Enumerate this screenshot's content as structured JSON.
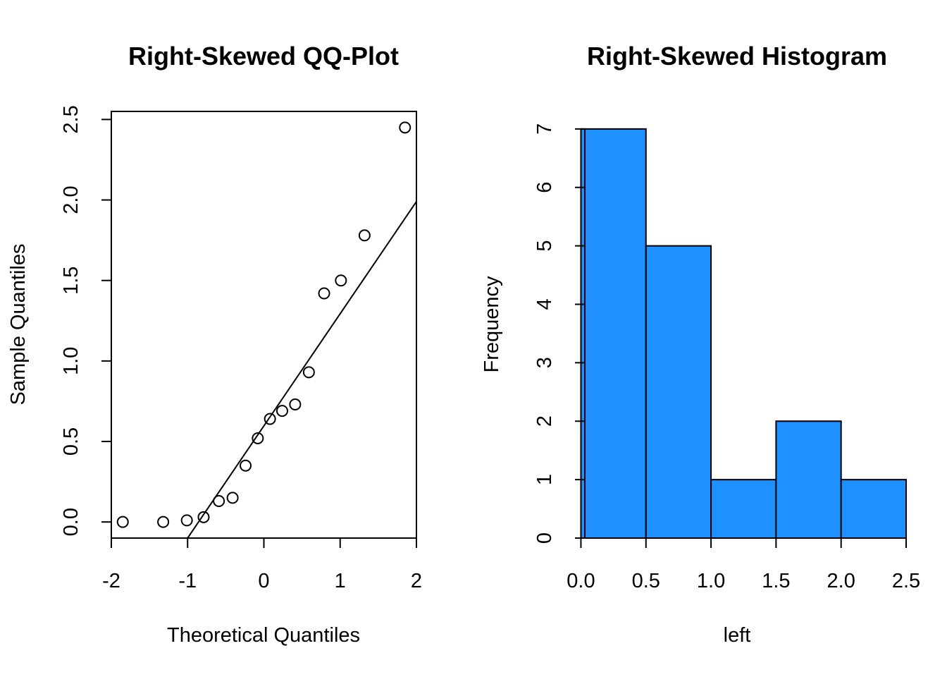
{
  "chart_data": [
    {
      "type": "scatter",
      "title": "Right-Skewed QQ-Plot",
      "xlabel": "Theoretical Quantiles",
      "ylabel": "Sample Quantiles",
      "xlim": [
        -2,
        2
      ],
      "ylim": [
        -0.1,
        2.55
      ],
      "xticks": [
        -2,
        -1,
        0,
        1,
        2
      ],
      "xtick_labels": [
        "-2",
        "-1",
        "0",
        "1",
        "2"
      ],
      "yticks": [
        0,
        0.5,
        1,
        1.5,
        2,
        2.5
      ],
      "ytick_labels": [
        "0.0",
        "0.5",
        "1.0",
        "1.5",
        "2.0",
        "2.5"
      ],
      "points": [
        {
          "x": -1.85,
          "y": 0.0
        },
        {
          "x": -1.32,
          "y": 0.0
        },
        {
          "x": -1.01,
          "y": 0.01
        },
        {
          "x": -0.79,
          "y": 0.03
        },
        {
          "x": -0.59,
          "y": 0.13
        },
        {
          "x": -0.41,
          "y": 0.15
        },
        {
          "x": -0.24,
          "y": 0.35
        },
        {
          "x": -0.08,
          "y": 0.52
        },
        {
          "x": 0.08,
          "y": 0.64
        },
        {
          "x": 0.24,
          "y": 0.69
        },
        {
          "x": 0.41,
          "y": 0.73
        },
        {
          "x": 0.59,
          "y": 0.93
        },
        {
          "x": 0.79,
          "y": 1.42
        },
        {
          "x": 1.01,
          "y": 1.5
        },
        {
          "x": 1.32,
          "y": 1.78
        },
        {
          "x": 1.85,
          "y": 2.45
        }
      ],
      "reference_line": {
        "x1": -1.0,
        "y1": -0.1,
        "x2": 2.0,
        "y2": 1.99
      },
      "marker": "open-circle",
      "grid": false
    },
    {
      "type": "bar",
      "title": "Right-Skewed Histogram",
      "xlabel": "left",
      "ylabel": "Frequency",
      "bins": [
        {
          "start": 0.0,
          "end": 0.5,
          "count": 7
        },
        {
          "start": 0.5,
          "end": 1.0,
          "count": 5
        },
        {
          "start": 1.0,
          "end": 1.5,
          "count": 1
        },
        {
          "start": 1.5,
          "end": 2.0,
          "count": 2
        },
        {
          "start": 2.0,
          "end": 2.5,
          "count": 1
        }
      ],
      "xlim": [
        -0.1,
        2.5
      ],
      "ylim": [
        0,
        7.3
      ],
      "xticks": [
        0,
        0.5,
        1,
        1.5,
        2,
        2.5
      ],
      "xtick_labels": [
        "0.0",
        "0.5",
        "1.0",
        "1.5",
        "2.0",
        "2.5"
      ],
      "yticks": [
        0,
        1,
        2,
        3,
        4,
        5,
        6,
        7
      ],
      "ytick_labels": [
        "0",
        "1",
        "2",
        "3",
        "4",
        "5",
        "6",
        "7"
      ],
      "bar_color": "#1E90FF",
      "edge_color": "#000000",
      "grid": false
    }
  ]
}
